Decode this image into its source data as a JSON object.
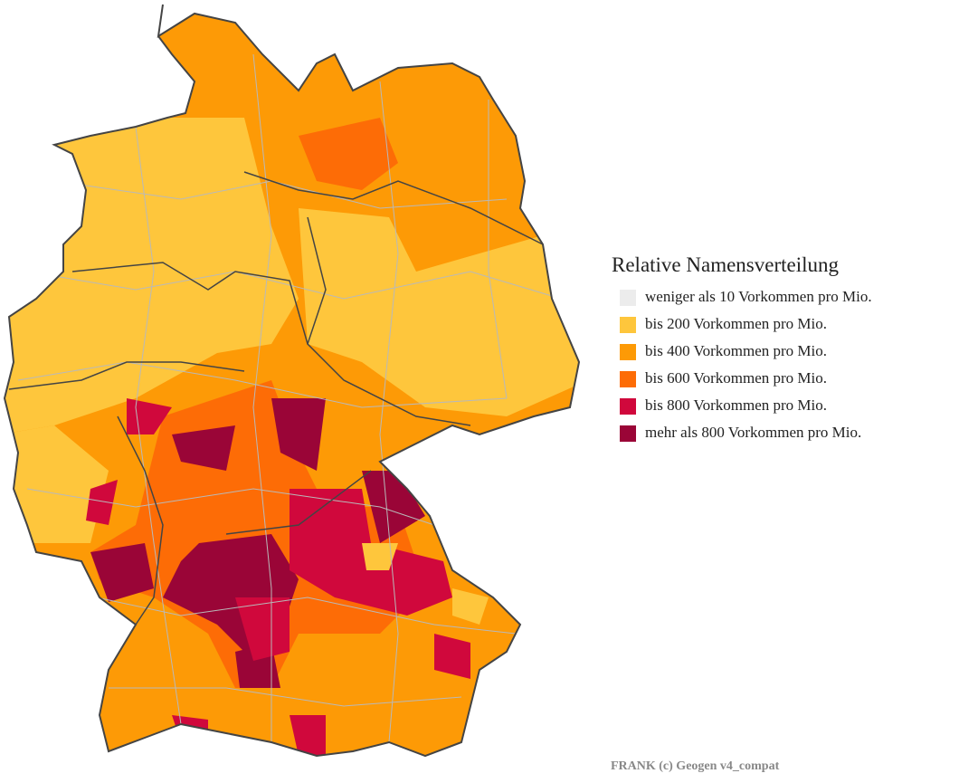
{
  "legend": {
    "title": "Relative Namensverteilung",
    "items": [
      {
        "label": "weniger als 10 Vorkommen pro Mio.",
        "color": "#ececec"
      },
      {
        "label": "bis 200 Vorkommen pro Mio.",
        "color": "#fec63c"
      },
      {
        "label": "bis 400 Vorkommen pro Mio.",
        "color": "#fd9a06"
      },
      {
        "label": "bis 600 Vorkommen pro Mio.",
        "color": "#fd6c06"
      },
      {
        "label": "bis 800 Vorkommen pro Mio.",
        "color": "#d0083c"
      },
      {
        "label": "mehr als 800 Vorkommen pro Mio.",
        "color": "#9a0537"
      }
    ]
  },
  "credit": "FRANK (c) Geogen v4_compat"
}
